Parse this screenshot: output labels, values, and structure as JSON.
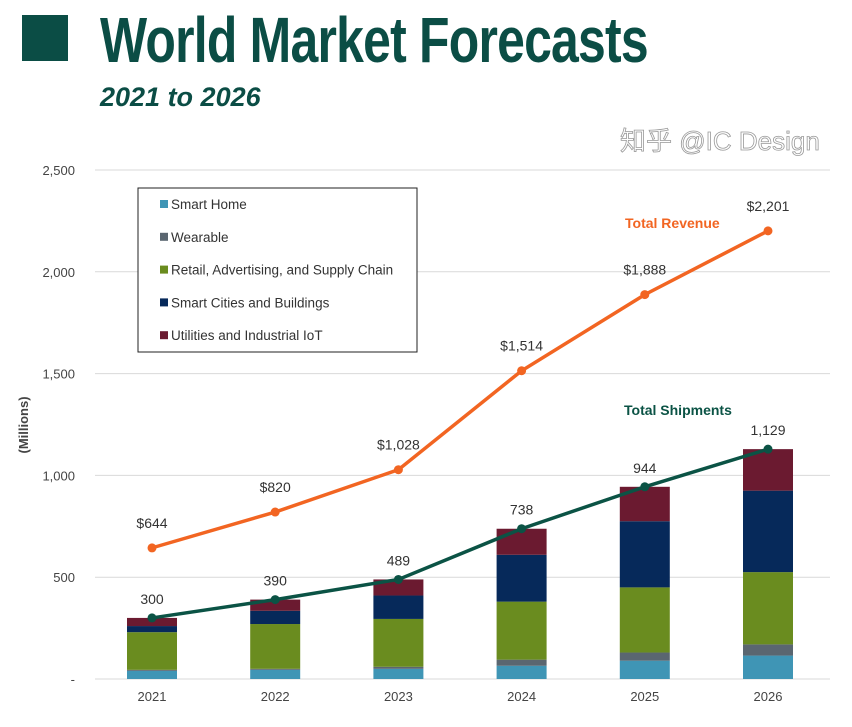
{
  "header": {
    "title": "World Market Forecasts",
    "subtitle": "2021 to 2026"
  },
  "watermark": "知乎 @IC Design",
  "colors": {
    "title": "#0b4d45",
    "revenue": "#f26522",
    "shipments": "#0b5345"
  },
  "chart_data": {
    "type": "bar",
    "stacked": true,
    "ylabel": "(Millions)",
    "ylim": [
      0,
      2500
    ],
    "yticks": [
      "-",
      "500",
      "1,000",
      "1,500",
      "2,000",
      "2,500"
    ],
    "ytick_values": [
      0,
      500,
      1000,
      1500,
      2000,
      2500
    ],
    "grid": true,
    "legend_placement": "top-left",
    "categories": [
      "2021",
      "2022",
      "2023",
      "2024",
      "2025",
      "2026"
    ],
    "series": [
      {
        "name": "Smart Home",
        "color": "#3f95b5",
        "values": [
          40,
          45,
          50,
          65,
          90,
          115
        ]
      },
      {
        "name": "Wearable",
        "color": "#5a6670",
        "values": [
          5,
          5,
          10,
          30,
          40,
          55
        ]
      },
      {
        "name": "Retail, Advertising, and Supply Chain",
        "color": "#6a8c1f",
        "values": [
          185,
          220,
          235,
          285,
          320,
          355
        ]
      },
      {
        "name": "Smart Cities and Buildings",
        "color": "#06295a",
        "values": [
          30,
          65,
          115,
          230,
          325,
          400
        ]
      },
      {
        "name": "Utilities and Industrial IoT",
        "color": "#6b1a30",
        "values": [
          40,
          55,
          79,
          128,
          169,
          204
        ]
      }
    ],
    "lines": [
      {
        "name": "Total Revenue",
        "color": "#f26522",
        "values": [
          644,
          820,
          1028,
          1514,
          1888,
          2201
        ],
        "labels": [
          "$644",
          "$820",
          "$1,028",
          "$1,514",
          "$1,888",
          "$2,201"
        ]
      },
      {
        "name": "Total Shipments",
        "color": "#0b5345",
        "values": [
          300,
          390,
          489,
          738,
          944,
          1129
        ],
        "labels": [
          "300",
          "390",
          "489",
          "738",
          "944",
          "1,129"
        ]
      }
    ]
  }
}
